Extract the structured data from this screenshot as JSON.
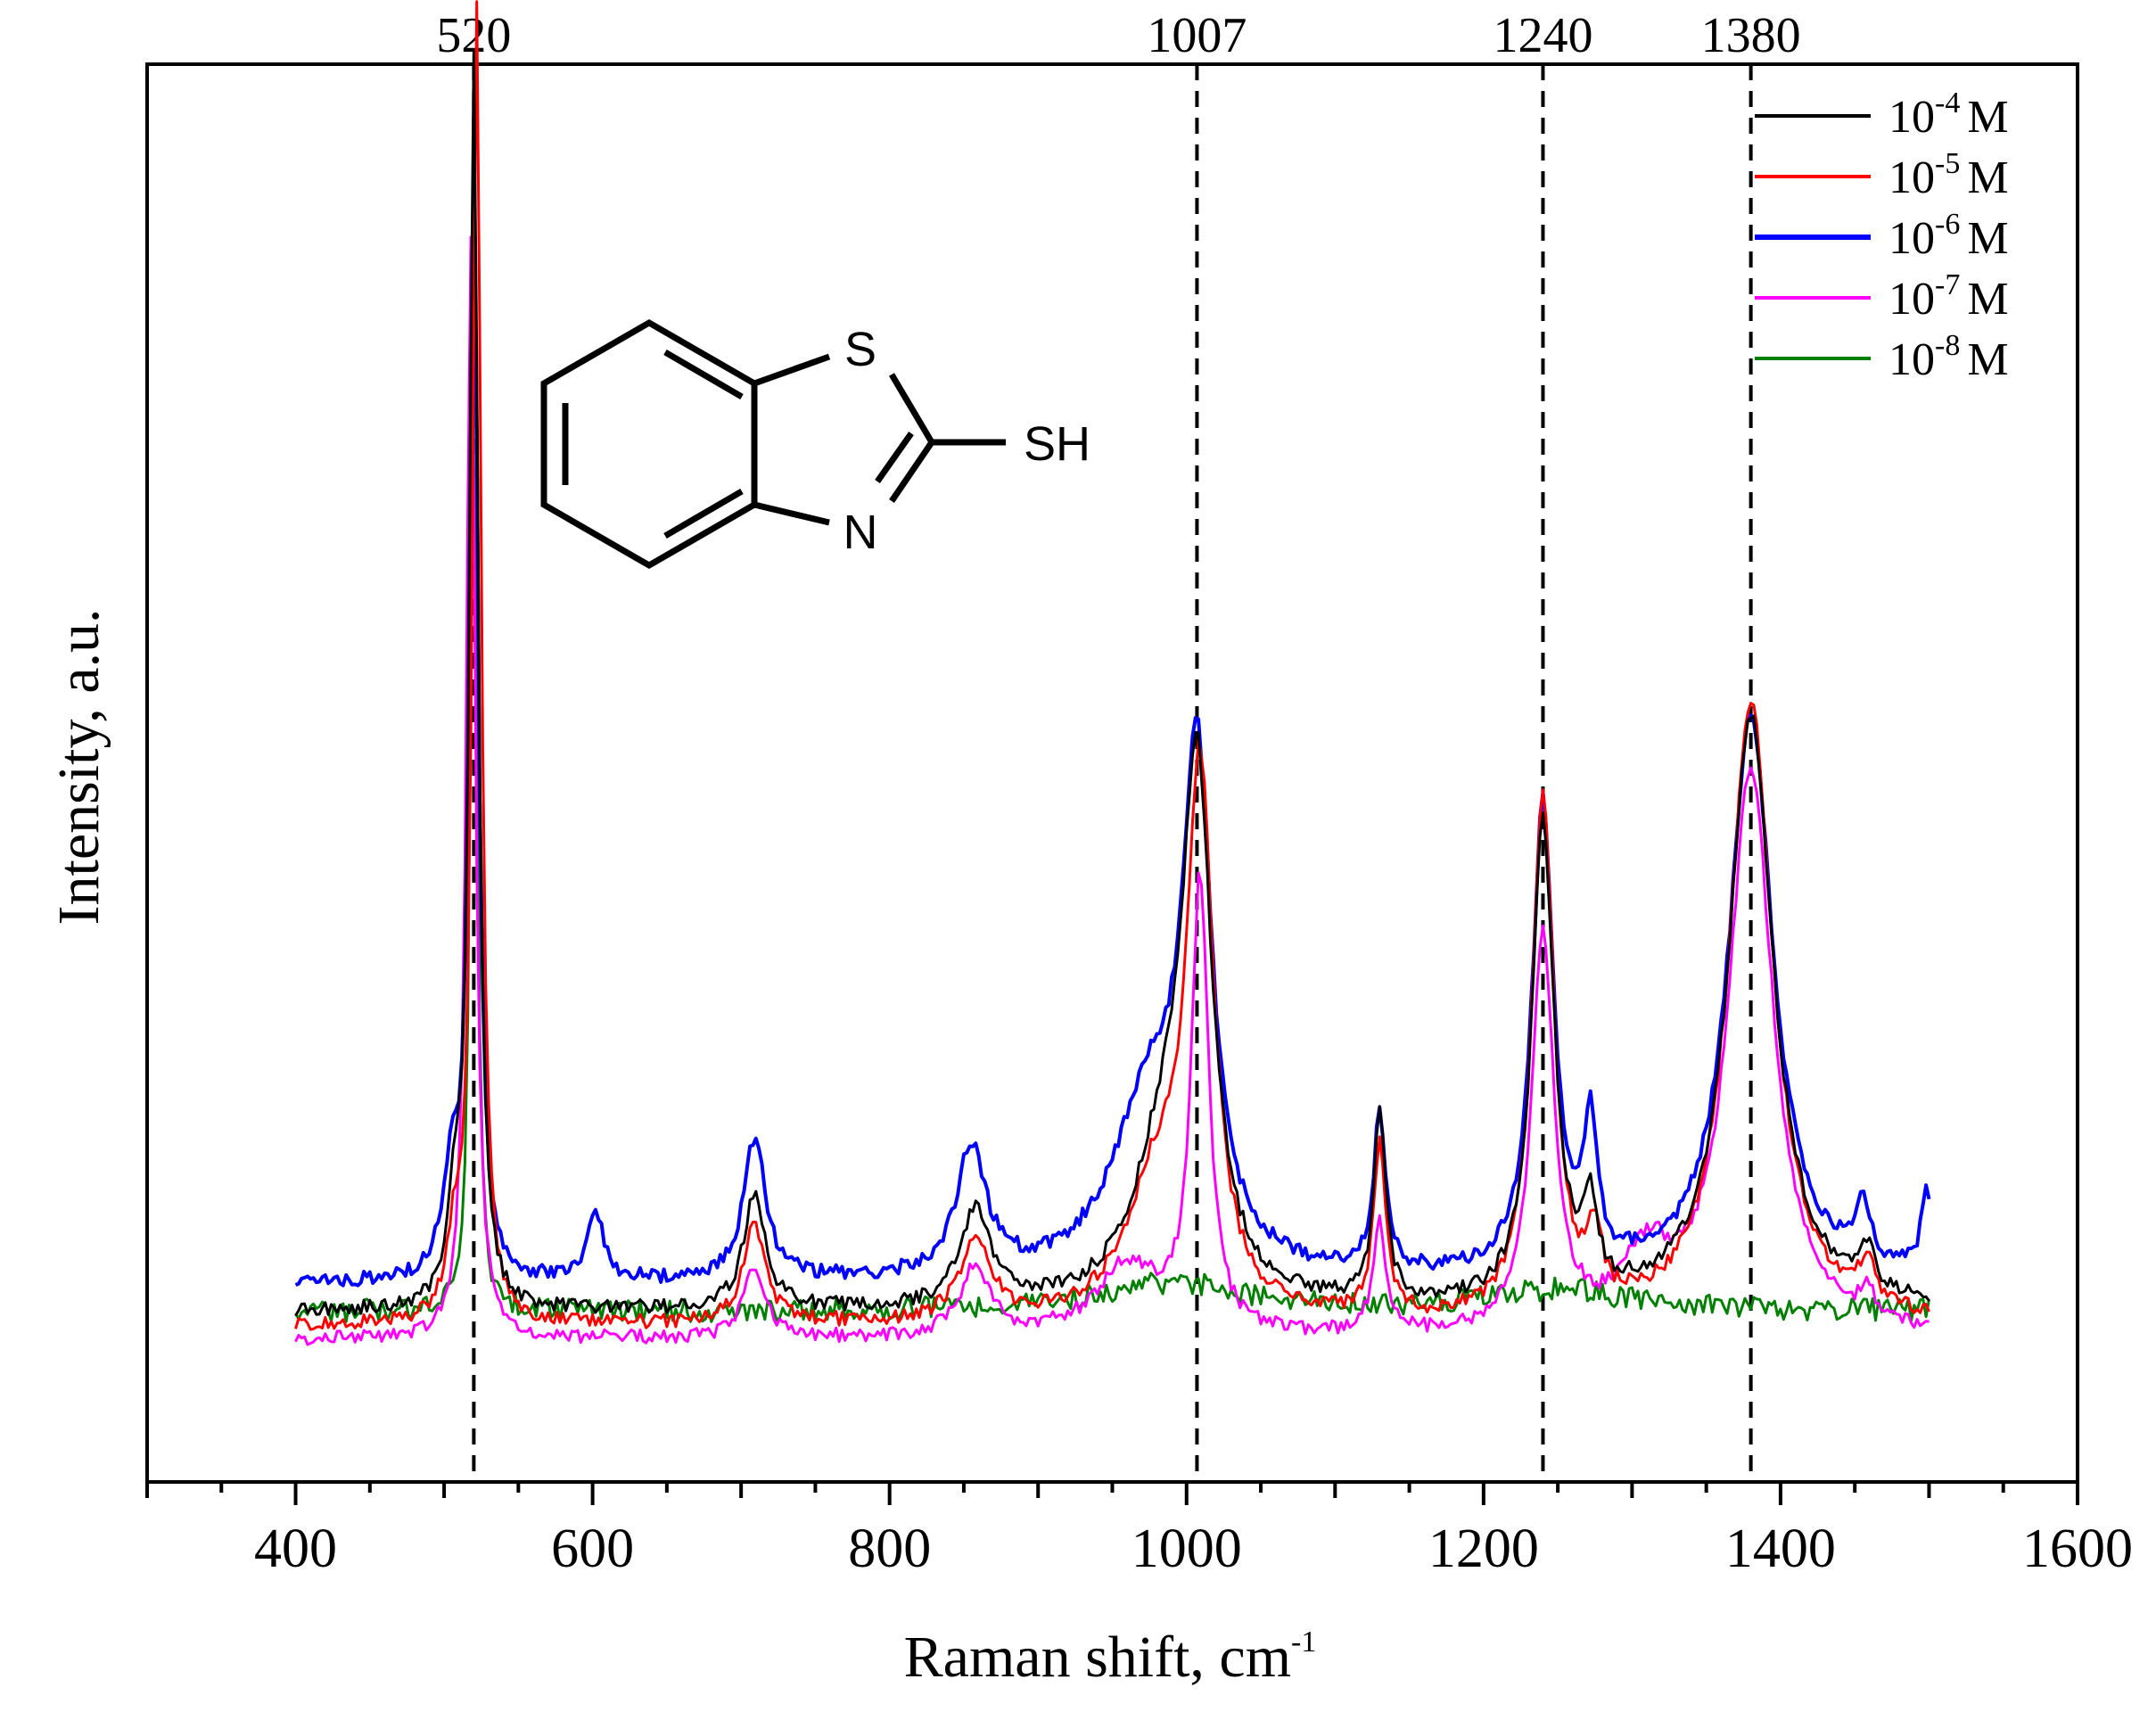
{
  "chart_data": {
    "type": "line",
    "xlabel": "Raman shift, cm",
    "xlabel_sup": "-1",
    "ylabel": "Intensity, a.u.",
    "xlim": [
      300,
      1600
    ],
    "ylim": [
      0,
      100
    ],
    "x_ticks": [
      400,
      600,
      800,
      1000,
      1200,
      1400,
      1600
    ],
    "y_ticks_shown": false,
    "grid": false,
    "legend_position": "top-right",
    "peak_lines": [
      {
        "x": 520,
        "label": "520"
      },
      {
        "x": 1007,
        "label": "1007"
      },
      {
        "x": 1240,
        "label": "1240"
      },
      {
        "x": 1380,
        "label": "1380"
      }
    ],
    "series": [
      {
        "name": "10-4 M",
        "legend_base": "10",
        "legend_exp": "-4",
        "legend_unit": "M",
        "color": "#000000",
        "baseline": 12,
        "peaks": [
          [
            520,
            88,
            3.5
          ],
          [
            507,
            6,
            6
          ],
          [
            709,
            8,
            9
          ],
          [
            858,
            7,
            12
          ],
          [
            1007,
            35,
            12
          ],
          [
            985,
            10,
            25
          ],
          [
            1130,
            13,
            5
          ],
          [
            1240,
            34,
            9
          ],
          [
            1272,
            6,
            5
          ],
          [
            1380,
            42,
            18
          ],
          [
            1458,
            3,
            6
          ]
        ]
      },
      {
        "name": "10-5 M",
        "legend_base": "10",
        "legend_exp": "-5",
        "legend_unit": "M",
        "color": "#ff0000",
        "baseline": 11,
        "peaks": [
          [
            522,
            93,
            3.5
          ],
          [
            507,
            5,
            6
          ],
          [
            709,
            7,
            9
          ],
          [
            858,
            6,
            12
          ],
          [
            1009,
            37,
            11
          ],
          [
            980,
            9,
            25
          ],
          [
            1130,
            12,
            5
          ],
          [
            1240,
            37,
            9
          ],
          [
            1275,
            5,
            5
          ],
          [
            1380,
            44,
            18
          ],
          [
            1458,
            3,
            6
          ]
        ]
      },
      {
        "name": "10-6 M",
        "legend_base": "10",
        "legend_exp": "-6",
        "legend_unit": "M",
        "color": "#0000ff",
        "baseline": 14,
        "peaks": [
          [
            520,
            78,
            3.5
          ],
          [
            505,
            7,
            7
          ],
          [
            602,
            5,
            6
          ],
          [
            709,
            10,
            9
          ],
          [
            855,
            9,
            12
          ],
          [
            1007,
            34,
            12
          ],
          [
            975,
            12,
            30
          ],
          [
            1130,
            11,
            5
          ],
          [
            1240,
            33,
            9
          ],
          [
            1272,
            10,
            5
          ],
          [
            1380,
            40,
            18
          ],
          [
            1455,
            4,
            6
          ],
          [
            1498,
            6,
            4
          ]
        ]
      },
      {
        "name": "10-7 M",
        "legend_base": "10",
        "legend_exp": "-7",
        "legend_unit": "M",
        "color": "#ff00ff",
        "baseline": 10,
        "peaks": [
          [
            518,
            78,
            3.5
          ],
          [
            709,
            5,
            9
          ],
          [
            858,
            5,
            12
          ],
          [
            1009,
            32,
            7
          ],
          [
            960,
            5,
            25
          ],
          [
            1130,
            8,
            5
          ],
          [
            1240,
            28,
            9
          ],
          [
            1310,
            5,
            20
          ],
          [
            1380,
            40,
            18
          ],
          [
            1458,
            2,
            6
          ]
        ]
      },
      {
        "name": "10-8 M",
        "legend_base": "10",
        "legend_exp": "-8",
        "legend_unit": "M",
        "color": "#008000",
        "baseline": 12,
        "peaks": [
          [
            520,
            88,
            2.2
          ],
          [
            990,
            2,
            60
          ],
          [
            1250,
            1.5,
            60
          ]
        ]
      }
    ],
    "inset": {
      "atom_S_ring": "S",
      "atom_N_ring": "N",
      "substituent": "SH",
      "atom_color_S": "#b8860b",
      "atom_color_N": "#1e40ff"
    }
  }
}
